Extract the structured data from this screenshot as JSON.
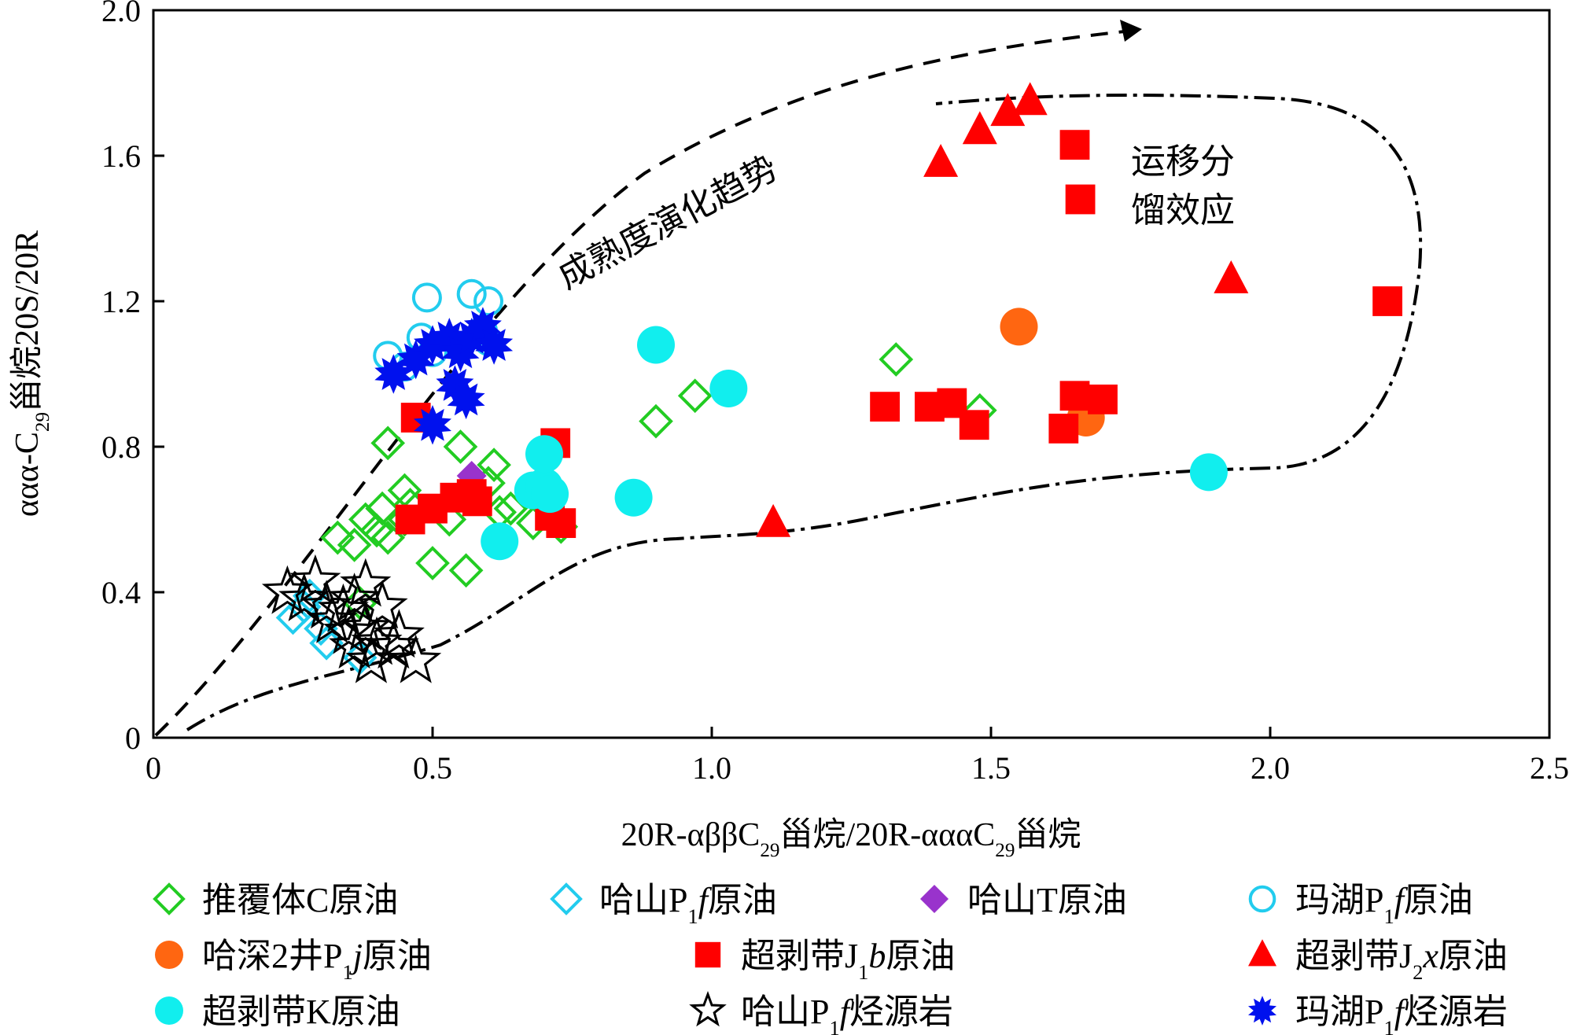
{
  "chart_data": {
    "type": "scatter",
    "title": "",
    "xlabel": "20R-αββC29甾烷/20R-αααC29甾烷",
    "ylabel": "ααα-C29甾烷20S/20R",
    "xlabel_parts": [
      "20R-αββC",
      "29",
      "甾烷/20R-αααC",
      "29",
      "甾烷"
    ],
    "ylabel_parts": [
      "ααα-C",
      "29",
      "甾烷20S/20R"
    ],
    "xlim": [
      0,
      2.5
    ],
    "ylim": [
      0,
      2.0
    ],
    "xticks": [
      0,
      0.5,
      1.0,
      1.5,
      2.0,
      2.5
    ],
    "xtick_labels": [
      "0",
      "0.5",
      "1.0",
      "1.5",
      "2.0",
      "2.5"
    ],
    "yticks": [
      0,
      0.4,
      0.8,
      1.2,
      1.6,
      2.0
    ],
    "ytick_labels": [
      "0",
      "0.4",
      "0.8",
      "1.2",
      "1.6",
      "2.0"
    ],
    "grid": false,
    "legend_position": "bottom",
    "annotations": {
      "trend_label": "成熟度演化趋势",
      "fractionation_label_line1": "运移分",
      "fractionation_label_line2": "馏效应"
    },
    "series": [
      {
        "name": "推覆体C原油",
        "label_parts": [
          "推覆体C原油"
        ],
        "marker": "diamond-open",
        "color": "#22cc22",
        "points": [
          [
            0.33,
            0.55
          ],
          [
            0.36,
            0.53
          ],
          [
            0.38,
            0.6
          ],
          [
            0.4,
            0.57
          ],
          [
            0.41,
            0.63
          ],
          [
            0.42,
            0.55
          ],
          [
            0.42,
            0.81
          ],
          [
            0.45,
            0.6
          ],
          [
            0.45,
            0.68
          ],
          [
            0.46,
            0.64
          ],
          [
            0.5,
            0.48
          ],
          [
            0.53,
            0.6
          ],
          [
            0.55,
            0.8
          ],
          [
            0.56,
            0.46
          ],
          [
            0.6,
            0.7
          ],
          [
            0.61,
            0.75
          ],
          [
            0.62,
            0.62
          ],
          [
            0.64,
            0.63
          ],
          [
            0.68,
            0.59
          ],
          [
            0.73,
            0.58
          ],
          [
            0.9,
            0.87
          ],
          [
            0.97,
            0.94
          ],
          [
            1.33,
            1.04
          ],
          [
            1.48,
            0.9
          ],
          [
            0.37,
            0.37
          ]
        ]
      },
      {
        "name": "哈山P1f原油",
        "label_parts": [
          "哈山P",
          "1",
          "f",
          "原油"
        ],
        "marker": "diamond-open",
        "color": "#22ccee",
        "points": [
          [
            0.25,
            0.33
          ],
          [
            0.27,
            0.36
          ],
          [
            0.28,
            0.39
          ],
          [
            0.3,
            0.3
          ],
          [
            0.31,
            0.26
          ],
          [
            0.37,
            0.22
          ]
        ]
      },
      {
        "name": "哈山T原油",
        "label_parts": [
          "哈山T原油"
        ],
        "marker": "diamond-filled",
        "color": "#9933cc",
        "points": [
          [
            0.57,
            0.72
          ]
        ]
      },
      {
        "name": "玛湖P1f原油",
        "label_parts": [
          "玛湖P",
          "1",
          "f",
          "原油"
        ],
        "marker": "circle-open",
        "color": "#22ccee",
        "points": [
          [
            0.42,
            1.05
          ],
          [
            0.45,
            1.02
          ],
          [
            0.49,
            1.21
          ],
          [
            0.48,
            1.1
          ],
          [
            0.5,
            1.06
          ],
          [
            0.57,
            1.22
          ],
          [
            0.6,
            1.2
          ],
          [
            0.59,
            1.12
          ],
          [
            0.6,
            1.09
          ]
        ]
      },
      {
        "name": "哈深2井P1j原油",
        "label_parts": [
          "哈深2井P",
          "1",
          "j",
          "原油"
        ],
        "marker": "circle-filled",
        "color": "#ff6611",
        "points": [
          [
            1.55,
            1.13
          ],
          [
            1.67,
            0.88
          ]
        ]
      },
      {
        "name": "超剥带J1b原油",
        "label_parts": [
          "超剥带J",
          "1",
          "b",
          "原油"
        ],
        "marker": "square-filled",
        "color": "#ff0000",
        "points": [
          [
            0.47,
            0.88
          ],
          [
            0.46,
            0.6
          ],
          [
            0.5,
            0.63
          ],
          [
            0.54,
            0.66
          ],
          [
            0.57,
            0.67
          ],
          [
            0.58,
            0.65
          ],
          [
            0.72,
            0.81
          ],
          [
            0.73,
            0.59
          ],
          [
            0.71,
            0.61
          ],
          [
            1.31,
            0.91
          ],
          [
            1.39,
            0.91
          ],
          [
            1.43,
            0.92
          ],
          [
            1.47,
            0.86
          ],
          [
            1.63,
            0.85
          ],
          [
            1.65,
            0.94
          ],
          [
            1.7,
            0.93
          ],
          [
            1.65,
            1.63
          ],
          [
            1.66,
            1.48
          ],
          [
            2.21,
            1.2
          ]
        ]
      },
      {
        "name": "超剥带J2x原油",
        "label_parts": [
          "超剥带J",
          "2",
          "x",
          "原油"
        ],
        "marker": "triangle-filled",
        "color": "#ff0000",
        "points": [
          [
            1.41,
            1.58
          ],
          [
            1.48,
            1.67
          ],
          [
            1.53,
            1.72
          ],
          [
            1.57,
            1.75
          ],
          [
            1.93,
            1.26
          ],
          [
            1.11,
            0.59
          ]
        ]
      },
      {
        "name": "超剥带K原油",
        "label_parts": [
          "超剥带K原油"
        ],
        "marker": "circle-filled",
        "color": "#11eeee",
        "points": [
          [
            0.62,
            0.54
          ],
          [
            0.68,
            0.68
          ],
          [
            0.7,
            0.69
          ],
          [
            0.7,
            0.78
          ],
          [
            0.71,
            0.67
          ],
          [
            0.86,
            0.66
          ],
          [
            0.9,
            1.08
          ],
          [
            1.03,
            0.96
          ],
          [
            1.89,
            0.73
          ]
        ]
      },
      {
        "name": "哈山P1f烃源岩",
        "label_parts": [
          "哈山P",
          "1",
          "f",
          "烃源岩"
        ],
        "marker": "star-open",
        "color": "#000000",
        "points": [
          [
            0.24,
            0.4
          ],
          [
            0.27,
            0.38
          ],
          [
            0.29,
            0.43
          ],
          [
            0.31,
            0.36
          ],
          [
            0.32,
            0.32
          ],
          [
            0.34,
            0.35
          ],
          [
            0.35,
            0.29
          ],
          [
            0.36,
            0.38
          ],
          [
            0.36,
            0.25
          ],
          [
            0.38,
            0.3
          ],
          [
            0.38,
            0.42
          ],
          [
            0.39,
            0.21
          ],
          [
            0.4,
            0.26
          ],
          [
            0.41,
            0.36
          ],
          [
            0.43,
            0.25
          ],
          [
            0.44,
            0.28
          ],
          [
            0.47,
            0.21
          ]
        ]
      },
      {
        "name": "玛湖P1f烃源岩",
        "label_parts": [
          "玛湖P",
          "1",
          "f",
          "烃源岩"
        ],
        "marker": "starburst-filled",
        "color": "#0011ee",
        "points": [
          [
            0.43,
            1.0
          ],
          [
            0.47,
            1.04
          ],
          [
            0.5,
            1.08
          ],
          [
            0.53,
            1.1
          ],
          [
            0.55,
            1.06
          ],
          [
            0.57,
            1.1
          ],
          [
            0.59,
            1.13
          ],
          [
            0.61,
            1.08
          ],
          [
            0.54,
            0.97
          ],
          [
            0.56,
            0.93
          ],
          [
            0.5,
            0.86
          ]
        ]
      }
    ]
  }
}
